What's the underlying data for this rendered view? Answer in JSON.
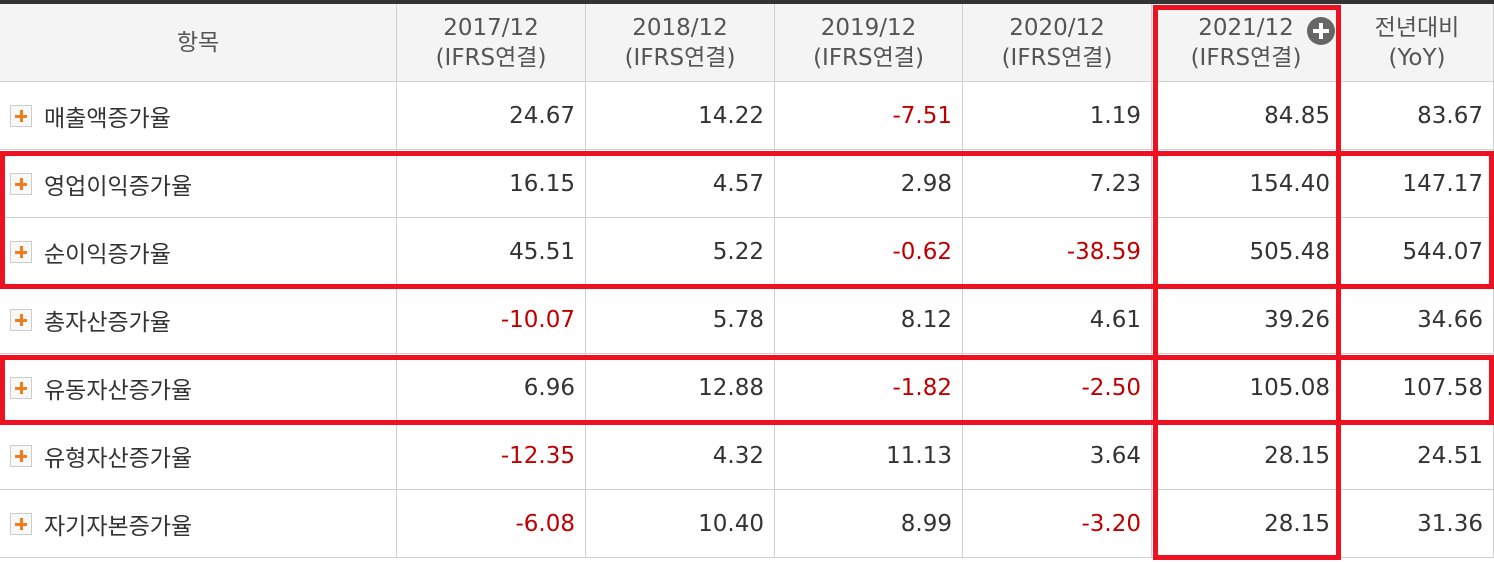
{
  "table": {
    "header": [
      [
        "항목"
      ],
      [
        "2017/12",
        "(IFRS연결)"
      ],
      [
        "2018/12",
        "(IFRS연결)"
      ],
      [
        "2019/12",
        "(IFRS연결)"
      ],
      [
        "2020/12",
        "(IFRS연결)"
      ],
      [
        "2021/12",
        "(IFRS연결)"
      ],
      [
        "전년대비",
        "(YoY)"
      ]
    ],
    "rows": [
      [
        "매출액증가율",
        "24.67",
        "14.22",
        "-7.51",
        "1.19",
        "84.85",
        "83.67"
      ],
      [
        "영업이익증가율",
        "16.15",
        "4.57",
        "2.98",
        "7.23",
        "154.40",
        "147.17"
      ],
      [
        "순이익증가율",
        "45.51",
        "5.22",
        "-0.62",
        "-38.59",
        "505.48",
        "544.07"
      ],
      [
        "총자산증가율",
        "-10.07",
        "5.78",
        "8.12",
        "4.61",
        "39.26",
        "34.66"
      ],
      [
        "유동자산증가율",
        "6.96",
        "12.88",
        "-1.82",
        "-2.50",
        "105.08",
        "107.58"
      ],
      [
        "유형자산증가율",
        "-12.35",
        "4.32",
        "11.13",
        "3.64",
        "28.15",
        "24.51"
      ],
      [
        "자기자본증가율",
        "-6.08",
        "10.40",
        "8.99",
        "-3.20",
        "28.15",
        "31.36"
      ]
    ]
  }
}
